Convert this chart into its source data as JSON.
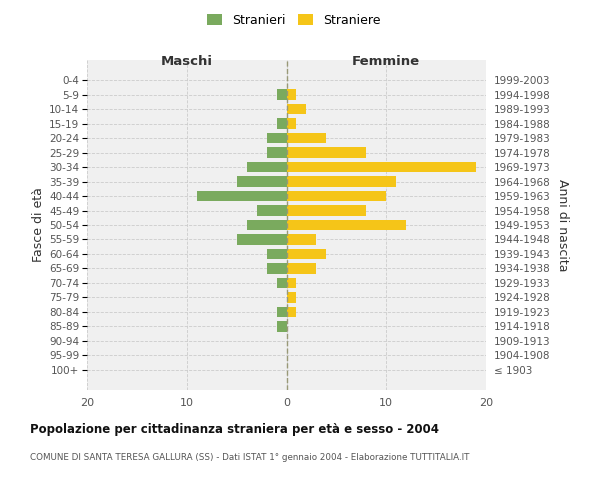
{
  "age_groups": [
    "100+",
    "95-99",
    "90-94",
    "85-89",
    "80-84",
    "75-79",
    "70-74",
    "65-69",
    "60-64",
    "55-59",
    "50-54",
    "45-49",
    "40-44",
    "35-39",
    "30-34",
    "25-29",
    "20-24",
    "15-19",
    "10-14",
    "5-9",
    "0-4"
  ],
  "birth_years": [
    "≤ 1903",
    "1904-1908",
    "1909-1913",
    "1914-1918",
    "1919-1923",
    "1924-1928",
    "1929-1933",
    "1934-1938",
    "1939-1943",
    "1944-1948",
    "1949-1953",
    "1954-1958",
    "1959-1963",
    "1964-1968",
    "1969-1973",
    "1974-1978",
    "1979-1983",
    "1984-1988",
    "1989-1993",
    "1994-1998",
    "1999-2003"
  ],
  "males": [
    0,
    0,
    0,
    1,
    1,
    0,
    1,
    2,
    2,
    5,
    4,
    3,
    9,
    5,
    4,
    2,
    2,
    1,
    0,
    1,
    0
  ],
  "females": [
    0,
    0,
    0,
    0,
    1,
    1,
    1,
    3,
    4,
    3,
    12,
    8,
    10,
    11,
    19,
    8,
    4,
    1,
    2,
    1,
    0
  ],
  "male_color": "#7aaa5e",
  "female_color": "#f5c518",
  "title": "Popolazione per cittadinanza straniera per età e sesso - 2004",
  "subtitle": "COMUNE DI SANTA TERESA GALLURA (SS) - Dati ISTAT 1° gennaio 2004 - Elaborazione TUTTITALIA.IT",
  "label_maschi": "Maschi",
  "label_femmine": "Femmine",
  "ylabel_left": "Fasce di età",
  "ylabel_right": "Anni di nascita",
  "legend_males": "Stranieri",
  "legend_females": "Straniere",
  "xlim": 20,
  "bg_color": "#ffffff",
  "plot_bg": "#f0f0f0",
  "grid_color": "#cccccc",
  "centerline_color": "#999977"
}
